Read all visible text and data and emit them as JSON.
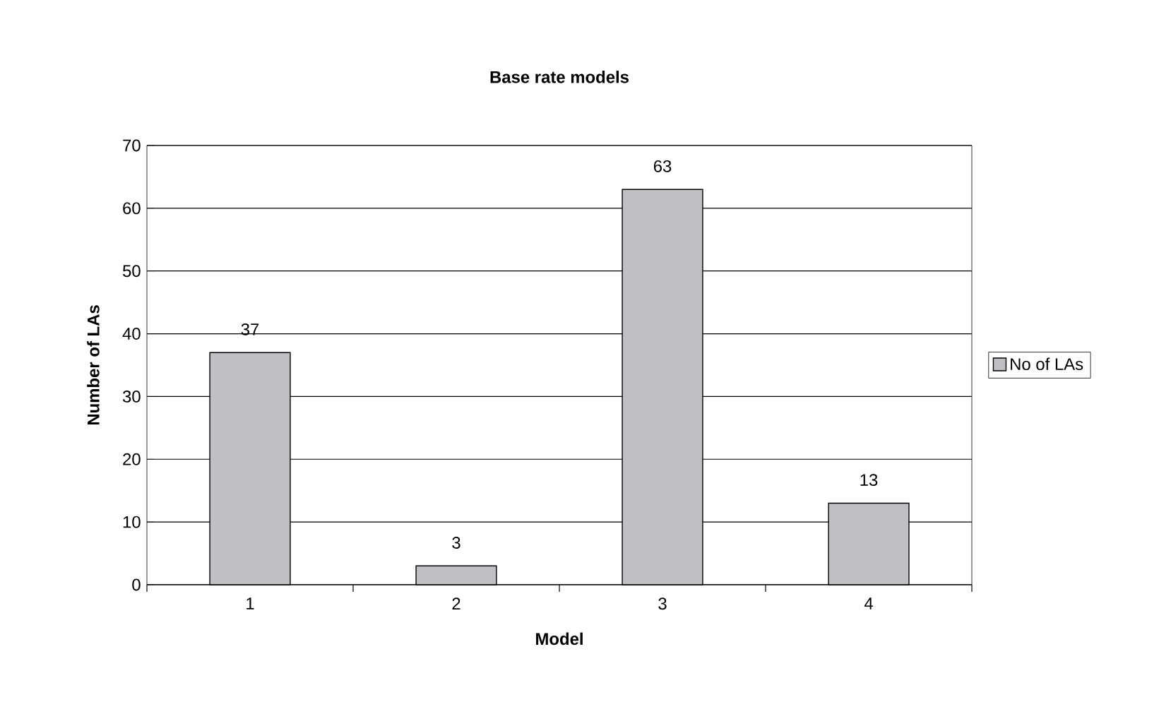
{
  "chart_data": {
    "type": "bar",
    "title": "Base rate models",
    "xlabel": "Model",
    "ylabel": "Number of LAs",
    "categories": [
      "1",
      "2",
      "3",
      "4"
    ],
    "series": [
      {
        "name": "No of LAs",
        "color": "#c0c0c4",
        "values": [
          37,
          3,
          63,
          13
        ]
      }
    ],
    "ylim": [
      0,
      70
    ],
    "yticks": [
      0,
      10,
      20,
      30,
      40,
      50,
      60,
      70
    ],
    "grid": "y",
    "legend": "right",
    "data_labels": true
  }
}
